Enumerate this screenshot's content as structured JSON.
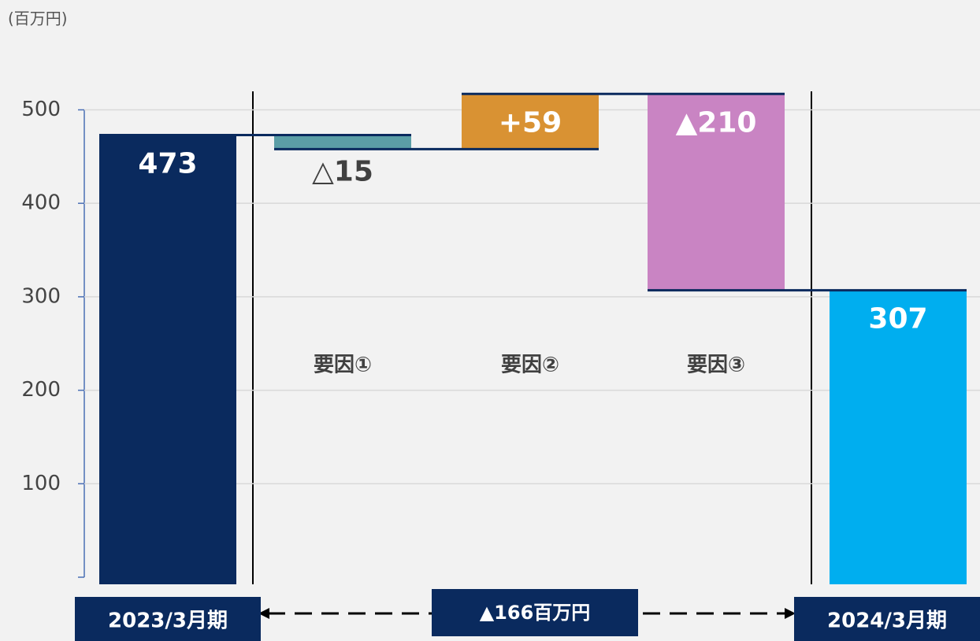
{
  "chart_data": {
    "type": "waterfall",
    "unit_label": "(百万円)",
    "categories": [
      "2023/3月期",
      "要因①",
      "要因②",
      "要因③",
      "2024/3月期"
    ],
    "measure": [
      "absolute",
      "relative",
      "relative",
      "relative",
      "absolute"
    ],
    "values": [
      473,
      -15,
      59,
      -210,
      307
    ],
    "value_labels": [
      "473",
      "△15",
      "+59",
      "▲210",
      "307"
    ],
    "colors": [
      "#0a2a5e",
      "#5b9ea6",
      "#d99233",
      "#c984c3",
      "#00aeef"
    ],
    "annotation": "▲166百万円",
    "ylim": [
      0,
      540
    ],
    "yticks": [
      100,
      200,
      300,
      400,
      500
    ],
    "grid": true
  }
}
